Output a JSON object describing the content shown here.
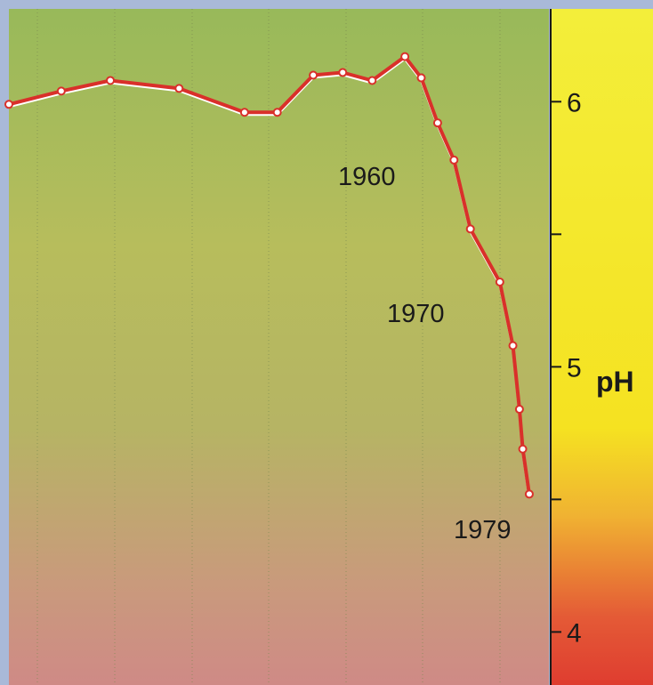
{
  "chart_data": {
    "type": "line",
    "title": "",
    "xlabel": "",
    "ylabel": "pH",
    "ylim": [
      3.8,
      6.35
    ],
    "yticks": [
      4,
      5,
      6
    ],
    "xlim": [
      1820,
      1985
    ],
    "grid": {
      "vertical": true,
      "horizontal": false
    },
    "colors": {
      "line": "#d9302a",
      "highlight": "#ffffff",
      "axis_gradient": [
        "#f3ee3a",
        "#f5e221",
        "#f0b232",
        "#e45a36",
        "#df3d30"
      ],
      "plot_gradient": [
        "#98b95a",
        "#b7bd5c",
        "#b6b464",
        "#c99a7c",
        "#cf8a86"
      ],
      "grid_line": "#7a8a50",
      "frame": "#9aa9c9"
    },
    "series": [
      {
        "values": [
          {
            "x": 1820,
            "y": 5.99
          },
          {
            "x": 1836,
            "y": 6.04
          },
          {
            "x": 1851,
            "y": 6.08
          },
          {
            "x": 1872,
            "y": 6.05
          },
          {
            "x": 1892,
            "y": 5.96
          },
          {
            "x": 1902,
            "y": 5.96
          },
          {
            "x": 1913,
            "y": 6.1
          },
          {
            "x": 1922,
            "y": 6.11
          },
          {
            "x": 1931,
            "y": 6.08
          },
          {
            "x": 1941,
            "y": 6.17
          },
          {
            "x": 1946,
            "y": 6.09
          },
          {
            "x": 1951,
            "y": 5.92
          },
          {
            "x": 1956,
            "y": 5.78
          },
          {
            "x": 1961,
            "y": 5.52
          },
          {
            "x": 1970,
            "y": 5.32
          },
          {
            "x": 1974,
            "y": 5.08
          },
          {
            "x": 1976,
            "y": 4.84
          },
          {
            "x": 1977,
            "y": 4.69
          },
          {
            "x": 1979,
            "y": 4.52
          }
        ]
      }
    ],
    "annotations": [
      {
        "text": "1960",
        "x": 1951,
        "y": 5.92
      },
      {
        "text": "1970",
        "x": 1970,
        "y": 5.32
      },
      {
        "text": "1979",
        "x": 1979,
        "y": 4.52
      }
    ]
  }
}
